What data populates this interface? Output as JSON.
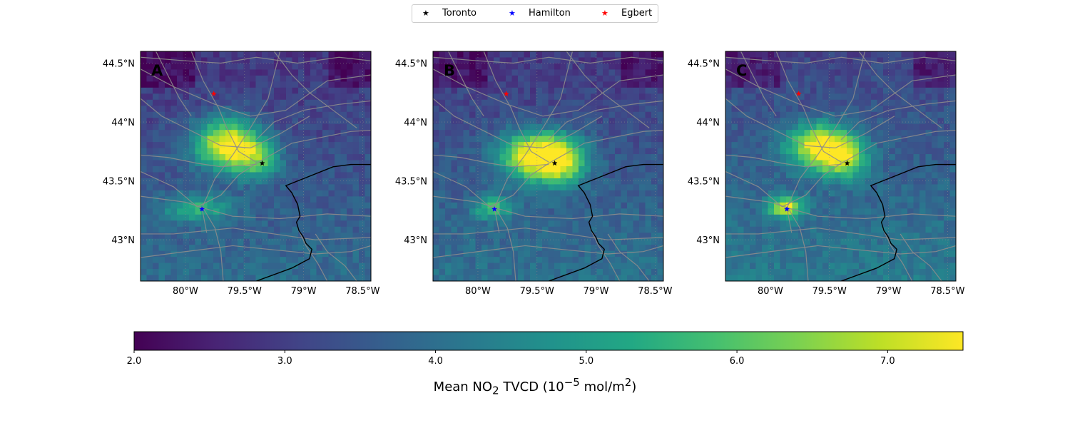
{
  "legend": [
    {
      "label": "Toronto",
      "color": "#000000",
      "marker": "star"
    },
    {
      "label": "Hamilton",
      "color": "#0000ff",
      "marker": "star"
    },
    {
      "label": "Egbert",
      "color": "#ff0000",
      "marker": "star"
    }
  ],
  "colorbar": {
    "min": 2.0,
    "max": 7.5,
    "ticks": [
      "2.0",
      "3.0",
      "4.0",
      "5.0",
      "6.0",
      "7.0"
    ],
    "tick_values": [
      2.0,
      3.0,
      4.0,
      5.0,
      6.0,
      7.0
    ],
    "title_prefix": "Mean NO",
    "title_sub": "2",
    "title_mid": " TVCD (10",
    "title_sup": "−5",
    "title_unit": " mol/m",
    "title_sup2": "2",
    "title_suffix": ")",
    "colormap": "viridis"
  },
  "chart_data": [
    {
      "type": "heatmap",
      "panel_label": "A",
      "xlim": [
        -80.38,
        -78.43
      ],
      "ylim": [
        42.65,
        44.6
      ],
      "xticks": [
        "80°W",
        "79.5°W",
        "79°W",
        "78.5°W"
      ],
      "xtick_values": [
        -80.0,
        -79.5,
        -79.0,
        -78.5
      ],
      "yticks": [
        "44.5°N",
        "44°N",
        "43.5°N",
        "43°N"
      ],
      "ytick_values": [
        44.5,
        44.0,
        43.5,
        43.0
      ],
      "hotspots": [
        {
          "lon": -79.65,
          "lat": 43.82,
          "peak": 7.6,
          "sx": 0.2,
          "sy": 0.15
        },
        {
          "lon": -79.4,
          "lat": 43.68,
          "peak": 5.6,
          "sx": 0.14,
          "sy": 0.12
        },
        {
          "lon": -79.9,
          "lat": 43.27,
          "peak": 5.4,
          "sx": 0.2,
          "sy": 0.08
        }
      ],
      "background": 3.4,
      "points": [
        {
          "name": "Toronto",
          "lon": -79.35,
          "lat": 43.65
        },
        {
          "name": "Hamilton",
          "lon": -79.86,
          "lat": 43.26
        },
        {
          "name": "Egbert",
          "lon": -79.76,
          "lat": 44.24
        }
      ]
    },
    {
      "type": "heatmap",
      "panel_label": "B",
      "xlim": [
        -80.38,
        -78.43
      ],
      "ylim": [
        42.65,
        44.6
      ],
      "xticks": [
        "80°W",
        "79.5°W",
        "79°W",
        "78.5°W"
      ],
      "xtick_values": [
        -80.0,
        -79.5,
        -79.0,
        -78.5
      ],
      "yticks": [
        "44.5°N",
        "44°N",
        "43.5°N",
        "43°N"
      ],
      "ytick_values": [
        44.5,
        44.0,
        43.5,
        43.0
      ],
      "hotspots": [
        {
          "lon": -79.52,
          "lat": 43.72,
          "peak": 7.5,
          "sx": 0.22,
          "sy": 0.14
        },
        {
          "lon": -79.3,
          "lat": 43.66,
          "peak": 6.2,
          "sx": 0.16,
          "sy": 0.14
        },
        {
          "lon": -79.87,
          "lat": 43.27,
          "peak": 5.6,
          "sx": 0.12,
          "sy": 0.07
        }
      ],
      "background": 3.5,
      "points": [
        {
          "name": "Toronto",
          "lon": -79.35,
          "lat": 43.65
        },
        {
          "name": "Hamilton",
          "lon": -79.86,
          "lat": 43.26
        },
        {
          "name": "Egbert",
          "lon": -79.76,
          "lat": 44.24
        }
      ]
    },
    {
      "type": "heatmap",
      "panel_label": "C",
      "xlim": [
        -80.38,
        -78.43
      ],
      "ylim": [
        42.65,
        44.6
      ],
      "xticks": [
        "80°W",
        "79.5°W",
        "79°W",
        "78.5°W"
      ],
      "xtick_values": [
        -80.0,
        -79.5,
        -79.0,
        -78.5
      ],
      "yticks": [
        "44.5°N",
        "44°N",
        "43.5°N",
        "43°N"
      ],
      "ytick_values": [
        44.5,
        44.0,
        43.5,
        43.0
      ],
      "hotspots": [
        {
          "lon": -79.58,
          "lat": 43.8,
          "peak": 7.6,
          "sx": 0.2,
          "sy": 0.13
        },
        {
          "lon": -79.38,
          "lat": 43.68,
          "peak": 6.3,
          "sx": 0.14,
          "sy": 0.12
        },
        {
          "lon": -79.87,
          "lat": 43.28,
          "peak": 7.3,
          "sx": 0.1,
          "sy": 0.06
        }
      ],
      "background": 3.7,
      "points": [
        {
          "name": "Toronto",
          "lon": -79.35,
          "lat": 43.65
        },
        {
          "name": "Hamilton",
          "lon": -79.86,
          "lat": 43.26
        },
        {
          "name": "Egbert",
          "lon": -79.76,
          "lat": 44.24
        }
      ]
    }
  ]
}
